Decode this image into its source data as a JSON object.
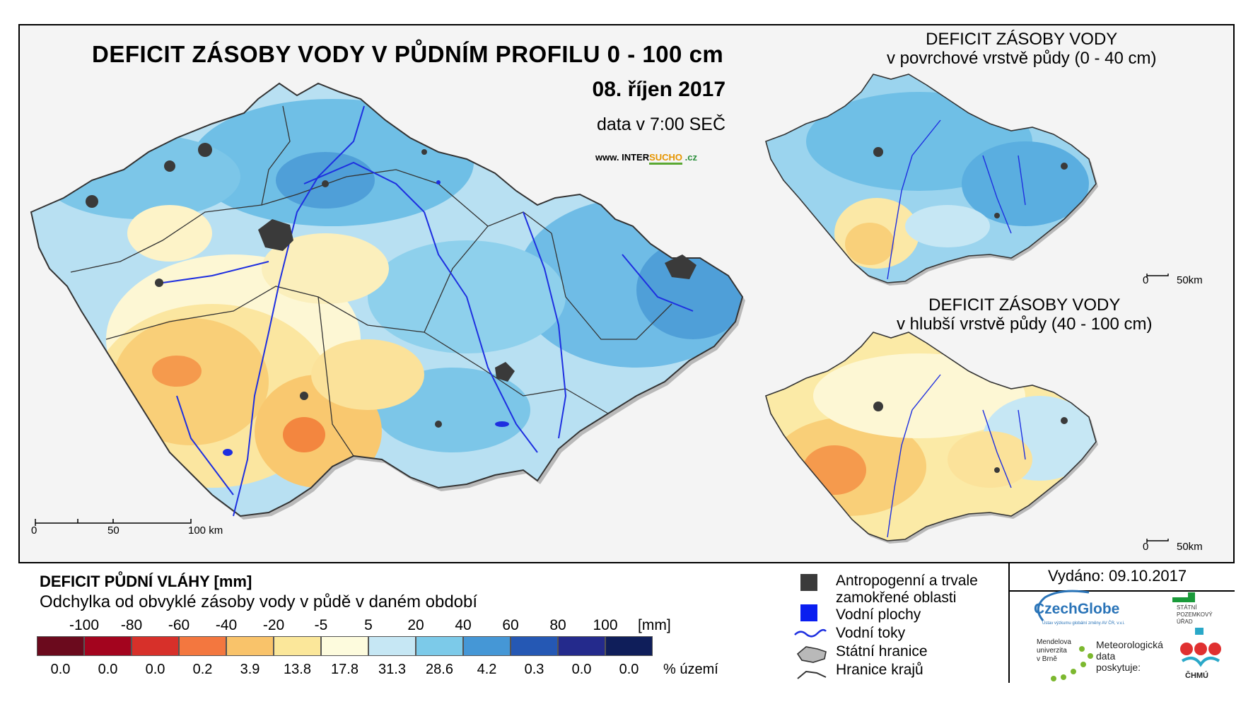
{
  "header": {
    "title": "DEFICIT ZÁSOBY VODY V PŮDNÍM PROFILU 0 - 100 cm",
    "date": "08. říjen 2017",
    "data_time": "data v 7:00 SEČ",
    "website_prefix": "www. INTER",
    "website_highlight": "SUCHO",
    "website_suffix": " .cz"
  },
  "inset_top": {
    "title_line1": "DEFICIT ZÁSOBY VODY",
    "title_line2": "v povrchové vrstvě půdy (0 - 40 cm)",
    "scale": [
      "0",
      "50km"
    ]
  },
  "inset_bottom": {
    "title_line1": "DEFICIT ZÁSOBY VODY",
    "title_line2": "v hlubší vrstvě půdy (40 - 100 cm)",
    "scale": [
      "0",
      "50km"
    ]
  },
  "main_scale": [
    "0",
    "50",
    "100 km"
  ],
  "legend": {
    "title": "DEFICIT PŮDNÍ VLÁHY [mm]",
    "subtitle": "Odchylka od obvyklé zásoby vody v půdě v daném období",
    "ticks": [
      "-100",
      "-80",
      "-60",
      "-40",
      "-20",
      "-5",
      "5",
      "20",
      "40",
      "60",
      "80",
      "100"
    ],
    "unit": "[mm]",
    "colors": [
      "#6b0a1d",
      "#a3041e",
      "#d7302a",
      "#f3773f",
      "#f9c36a",
      "#fbe79a",
      "#fdfbdd",
      "#c6e7f4",
      "#7ccae9",
      "#4597d6",
      "#2558b4",
      "#242a8c",
      "#0f1e5a"
    ],
    "percents": [
      "0.0",
      "0.0",
      "0.0",
      "0.2",
      "3.9",
      "13.8",
      "17.8",
      "31.3",
      "28.6",
      "4.2",
      "0.3",
      "0.0",
      "0.0"
    ],
    "percent_unit": "% území"
  },
  "symbols": {
    "anthropogenic_line1": "Antropogenní a trvale",
    "anthropogenic_line2": "zamokřené oblasti",
    "water_bodies": "Vodní plochy",
    "rivers": "Vodní toky",
    "state_border": "Státní hranice",
    "region_border": "Hranice krajů"
  },
  "issued": "Vydáno: 09.10.2017",
  "logos": {
    "czechglobe": "CzechGlobe",
    "czechglobe_sub": "Ústav výzkumu globální změny AV ČR, v.v.i.",
    "spu_line1": "STÁTNÍ",
    "spu_line2": "POZEMKOVÝ",
    "spu_line3": "ÚŘAD",
    "mendelu_line1": "Mendelova",
    "mendelu_line2": "univerzita",
    "mendelu_line3": "v Brně",
    "met_line1": "Meteorologická",
    "met_line2": "data",
    "met_line3": "poskytuje:",
    "chmu": "ČHMÚ"
  }
}
